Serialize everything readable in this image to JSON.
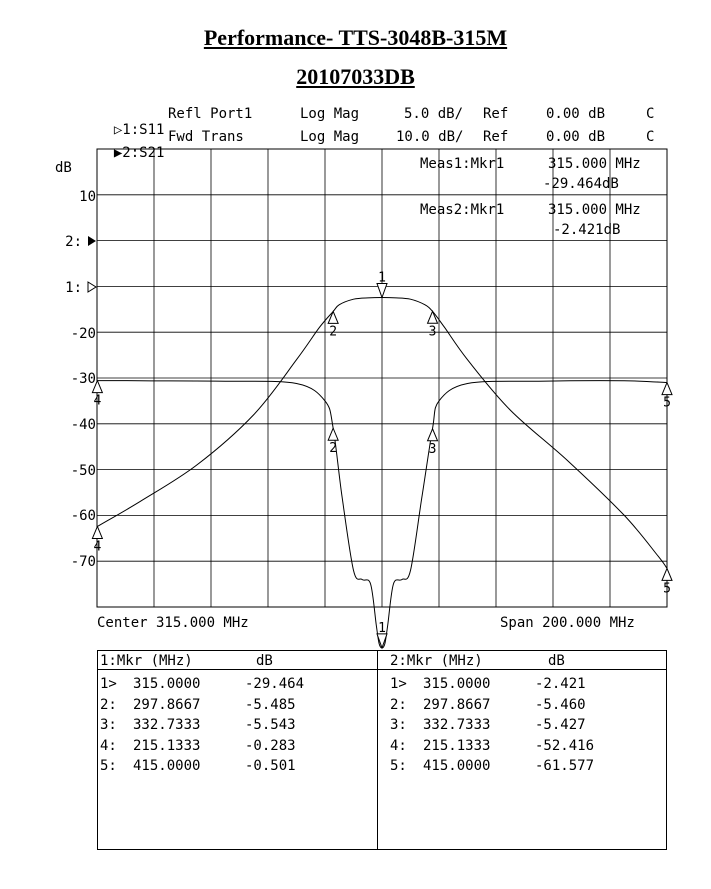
{
  "titles": {
    "line1": "Performance- TTS-3048B-315M",
    "line2": "20107033DB"
  },
  "traces": [
    {
      "marker": "▷",
      "id": "1:S11",
      "name": "Refl Port1",
      "format": "Log Mag",
      "scale": "5.0 dB/",
      "ref_label": "Ref",
      "ref": "0.00 dB",
      "flag": "C"
    },
    {
      "marker": "▶",
      "id": "2:S21",
      "name": "Fwd Trans",
      "format": "Log Mag",
      "scale": "10.0 dB/",
      "ref_label": "Ref",
      "ref": "0.00 dB",
      "flag": "C"
    }
  ],
  "measurements": [
    {
      "label": "Meas1:Mkr1",
      "freq": "315.000 MHz",
      "value": "-29.464dB"
    },
    {
      "label": "Meas2:Mkr1",
      "freq": "315.000 MHz",
      "value": "-2.421dB"
    }
  ],
  "y_unit": "dB",
  "y_ticks": [
    "10",
    "2:",
    "1:",
    "-20",
    "-30",
    "-40",
    "-50",
    "-60",
    "-70"
  ],
  "center_label": "Center 315.000 MHz",
  "span_label": "Span 200.000 MHz",
  "marker_labels": {
    "s11": [
      "1",
      "2",
      "3",
      "4",
      "5"
    ],
    "s21": [
      "1",
      "2",
      "3",
      "4",
      "5"
    ]
  },
  "marker_table": {
    "s11_header": {
      "col1": "1:Mkr (MHz)",
      "col2": "dB"
    },
    "s21_header": {
      "col1": "2:Mkr (MHz)",
      "col2": "dB"
    },
    "s11_rows": [
      {
        "idx": "1>",
        "freq": "315.0000",
        "db": "-29.464"
      },
      {
        "idx": "2:",
        "freq": "297.8667",
        "db": "-5.485"
      },
      {
        "idx": "3:",
        "freq": "332.7333",
        "db": "-5.543"
      },
      {
        "idx": "4:",
        "freq": "215.1333",
        "db": "-0.283"
      },
      {
        "idx": "5:",
        "freq": "415.0000",
        "db": "-0.501"
      }
    ],
    "s21_rows": [
      {
        "idx": "1>",
        "freq": "315.0000",
        "db": "-2.421"
      },
      {
        "idx": "2:",
        "freq": "297.8667",
        "db": "-5.460"
      },
      {
        "idx": "3:",
        "freq": "332.7333",
        "db": "-5.427"
      },
      {
        "idx": "4:",
        "freq": "215.1333",
        "db": "-52.416"
      },
      {
        "idx": "5:",
        "freq": "415.0000",
        "db": "-61.577"
      }
    ]
  },
  "chart_data": {
    "type": "line",
    "x_unit": "MHz",
    "xlim": [
      215,
      415
    ],
    "grid": true,
    "series": [
      {
        "name": "S11",
        "scale_db_per_div": 5,
        "ref_db": 0,
        "x": [
          215,
          230,
          260,
          285,
          295,
          297.87,
          301,
          305,
          308,
          311,
          313,
          314,
          315,
          316,
          317,
          319,
          322,
          325,
          329,
          332.73,
          335,
          345,
          370,
          400,
          415
        ],
        "y": [
          -0.28,
          -0.3,
          -0.35,
          -0.6,
          -2.5,
          -5.49,
          -13,
          -21,
          -22,
          -22.5,
          -27,
          -29,
          -29.46,
          -29,
          -27,
          -22.5,
          -22,
          -21,
          -13,
          -5.54,
          -2.5,
          -0.6,
          -0.35,
          -0.3,
          -0.5
        ]
      },
      {
        "name": "S21",
        "scale_db_per_div": 10,
        "ref_db": 0,
        "x": [
          215.13,
          230,
          250,
          270,
          285,
          293,
          297.87,
          300,
          305,
          310,
          315,
          320,
          325,
          330,
          332.73,
          337,
          345,
          360,
          380,
          400,
          412,
          415
        ],
        "y": [
          -52.42,
          -47,
          -39,
          -28,
          -16,
          -9,
          -5.46,
          -4,
          -2.8,
          -2.5,
          -2.42,
          -2.5,
          -2.8,
          -4,
          -5.43,
          -9,
          -16,
          -27,
          -38,
          -50,
          -59,
          -61.58
        ]
      }
    ]
  }
}
